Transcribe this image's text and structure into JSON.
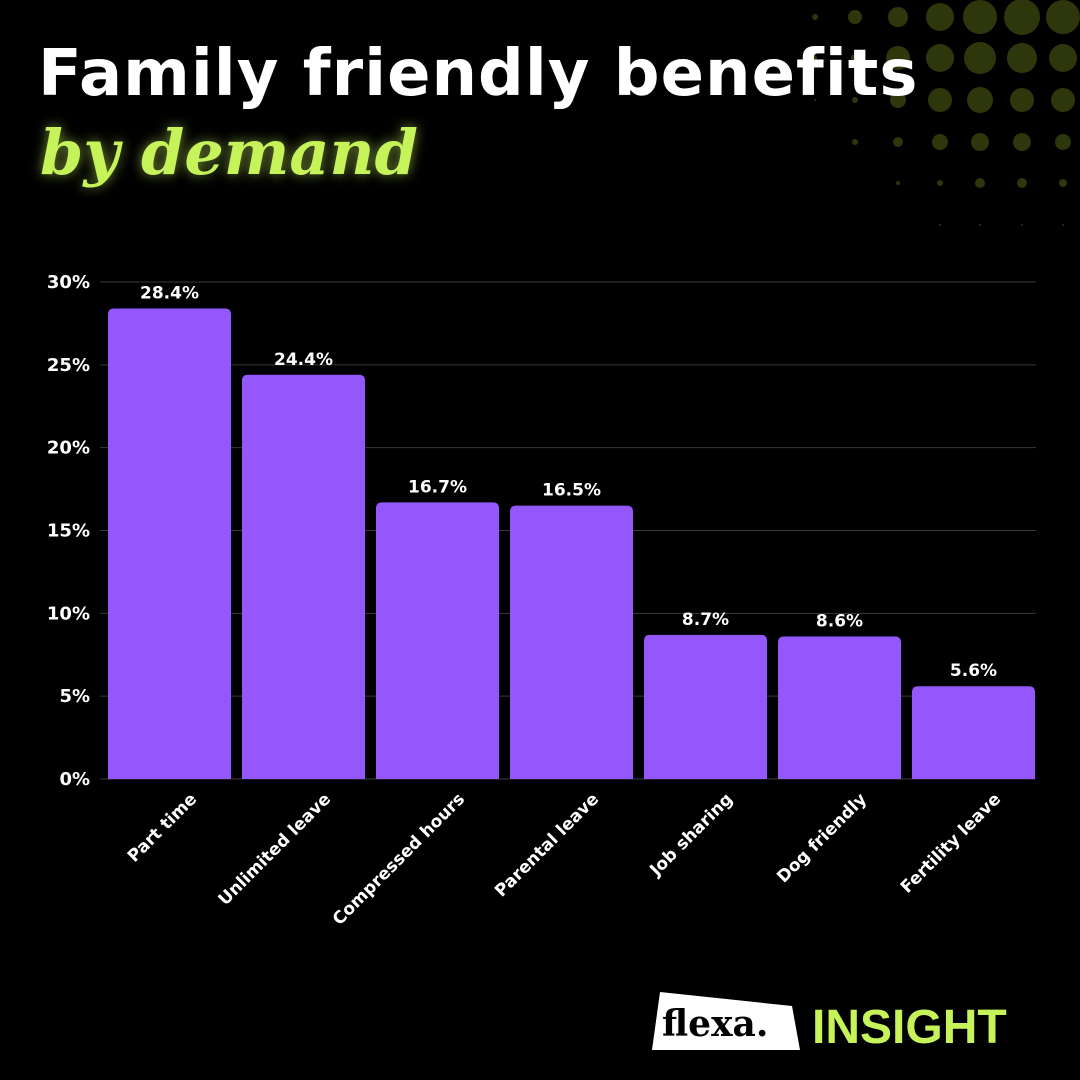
{
  "header": {
    "title": "Family friendly benefits",
    "subtitle": "by demand"
  },
  "colors": {
    "bar": "#9457fc",
    "accent": "#c6f25a",
    "grid": "#3a3a3a",
    "dots": "#2e360c"
  },
  "chart_data": {
    "type": "bar",
    "title": "Family friendly benefits by demand",
    "categories": [
      "Part time",
      "Unlimited leave",
      "Compressed hours",
      "Parental leave",
      "Job sharing",
      "Dog friendly",
      "Fertility leave"
    ],
    "values": [
      28.4,
      24.4,
      16.7,
      16.5,
      8.7,
      8.6,
      5.6
    ],
    "value_labels": [
      "28.4%",
      "24.4%",
      "16.7%",
      "16.5%",
      "8.7%",
      "8.6%",
      "5.6%"
    ],
    "yticks": [
      0,
      5,
      10,
      15,
      20,
      25,
      30
    ],
    "ytick_labels": [
      "0%",
      "5%",
      "10%",
      "15%",
      "20%",
      "25%",
      "30%"
    ],
    "ylim": [
      0,
      30
    ],
    "xlabel": "",
    "ylabel": "",
    "grid": true
  },
  "branding": {
    "logo": "flexa.",
    "tag": "INSIGHT"
  }
}
